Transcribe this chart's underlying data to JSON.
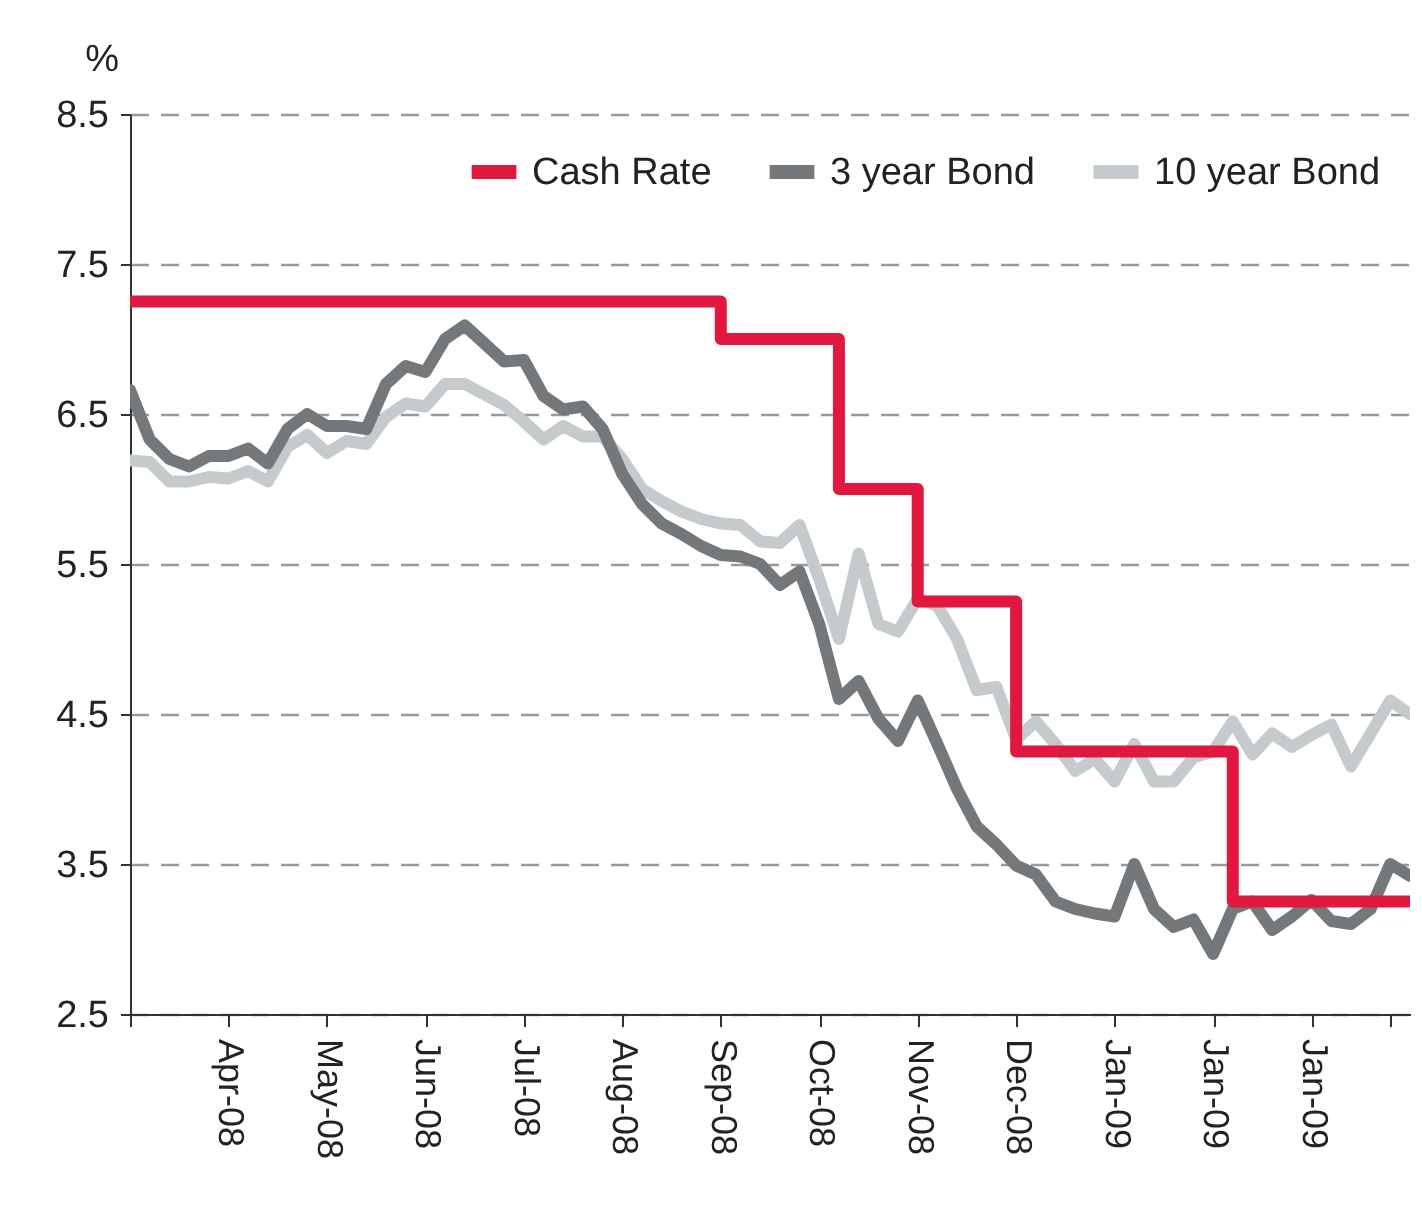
{
  "chart_data": {
    "type": "line",
    "ylabel": "%",
    "ylim": [
      2.5,
      8.5
    ],
    "categories": [
      null,
      null,
      null,
      null,
      null,
      "Apr-08",
      null,
      null,
      null,
      null,
      "May-08",
      null,
      null,
      null,
      null,
      "Jun-08",
      null,
      null,
      null,
      null,
      "Jul-08",
      null,
      null,
      null,
      null,
      "Aug-08",
      null,
      null,
      null,
      null,
      "Sep-08",
      null,
      null,
      null,
      null,
      "Oct-08",
      null,
      null,
      null,
      null,
      "Nov-08",
      null,
      null,
      null,
      null,
      "Dec-08",
      null,
      null,
      null,
      null,
      "Jan-09",
      null,
      null,
      null,
      null,
      "Jan-09",
      null,
      null,
      null,
      null,
      "Jan-09",
      null,
      null,
      null,
      null,
      null
    ],
    "yticks": [
      2.5,
      3.5,
      4.5,
      5.5,
      6.5,
      7.5,
      8.5
    ],
    "grid": "y",
    "legend": "top right",
    "series": [
      {
        "name": "Cash Rate",
        "type": "step",
        "color": "#e0173f",
        "values": [
          7.25,
          7.25,
          7.25,
          7.25,
          7.25,
          7.25,
          7.25,
          7.25,
          7.25,
          7.25,
          7.25,
          7.25,
          7.25,
          7.25,
          7.25,
          7.25,
          7.25,
          7.25,
          7.25,
          7.25,
          7.25,
          7.25,
          7.25,
          7.25,
          7.25,
          7.25,
          7.25,
          7.25,
          7.25,
          7.25,
          7.0,
          7.0,
          7.0,
          7.0,
          7.0,
          7.0,
          6.0,
          6.0,
          6.0,
          6.0,
          5.25,
          5.25,
          5.25,
          5.25,
          5.25,
          4.25,
          4.25,
          4.25,
          4.25,
          4.25,
          4.25,
          4.25,
          4.25,
          4.25,
          4.25,
          4.25,
          3.25,
          3.25,
          3.25,
          3.25,
          3.25,
          3.25,
          3.25,
          3.25,
          3.25,
          3.25
        ]
      },
      {
        "name": "3 year Bond",
        "color": "#75787b",
        "values": [
          6.66,
          6.33,
          6.2,
          6.15,
          6.22,
          6.22,
          6.27,
          6.17,
          6.4,
          6.5,
          6.42,
          6.42,
          6.4,
          6.7,
          6.82,
          6.78,
          7.0,
          7.09,
          6.97,
          6.85,
          6.86,
          6.62,
          6.53,
          6.55,
          6.4,
          6.1,
          5.9,
          5.77,
          5.7,
          5.62,
          5.56,
          5.55,
          5.5,
          5.36,
          5.45,
          5.1,
          4.6,
          4.72,
          4.47,
          4.32,
          4.59,
          4.3,
          4.0,
          3.75,
          3.63,
          3.49,
          3.43,
          3.25,
          3.2,
          3.17,
          3.15,
          3.5,
          3.2,
          3.08,
          3.13,
          2.9,
          3.2,
          3.25,
          3.06,
          3.15,
          3.26,
          3.12,
          3.1,
          3.2,
          3.5,
          3.42
        ]
      },
      {
        "name": "10 year Bond",
        "color": "#c5cacc",
        "values": [
          6.19,
          6.18,
          6.05,
          6.05,
          6.08,
          6.07,
          6.12,
          6.05,
          6.28,
          6.36,
          6.24,
          6.32,
          6.3,
          6.48,
          6.57,
          6.55,
          6.7,
          6.7,
          6.63,
          6.56,
          6.45,
          6.33,
          6.42,
          6.35,
          6.35,
          6.2,
          6.0,
          5.92,
          5.85,
          5.8,
          5.77,
          5.76,
          5.65,
          5.64,
          5.76,
          5.4,
          5.0,
          5.57,
          5.1,
          5.05,
          5.27,
          5.22,
          5.0,
          4.66,
          4.68,
          4.33,
          4.45,
          4.3,
          4.12,
          4.2,
          4.05,
          4.3,
          4.05,
          4.05,
          4.21,
          4.25,
          4.45,
          4.23,
          4.37,
          4.28,
          4.36,
          4.43,
          4.15,
          4.37,
          4.59,
          4.5
        ]
      }
    ]
  }
}
